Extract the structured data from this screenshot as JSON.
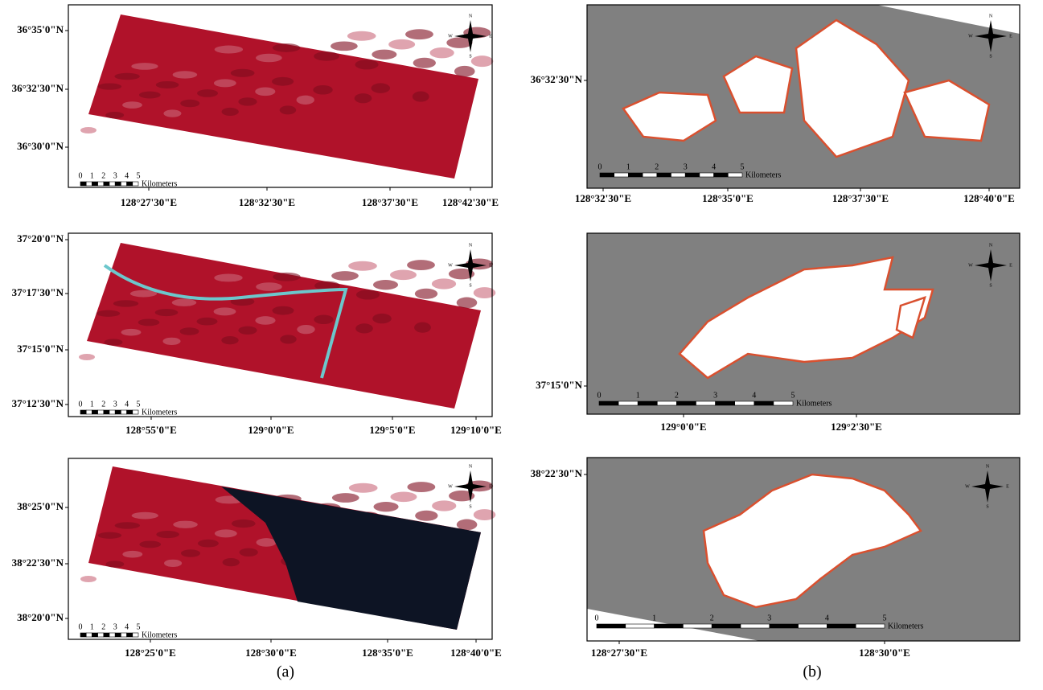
{
  "columns": [
    {
      "caption": "(a)",
      "panels": [
        {
          "lat_labels": [
            "36°35'0\"N",
            "36°32'30\"N",
            "36°30'0\"N"
          ],
          "lon_labels": [
            "128°27'30\"E",
            "128°32'30\"E",
            "128°37'30\"E",
            "128°42'30\"E"
          ],
          "scale_labels": [
            "0",
            "1",
            "2",
            "3",
            "4",
            "5"
          ],
          "scale_unit": "Kilometers",
          "compass": [
            "N",
            "E",
            "S",
            "W"
          ]
        },
        {
          "lat_labels": [
            "37°20'0\"N",
            "37°17'30\"N",
            "37°15'0\"N",
            "37°12'30\"N"
          ],
          "lon_labels": [
            "128°55'0\"E",
            "129°0'0\"E",
            "129°5'0\"E",
            "129°10'0\"E"
          ],
          "scale_labels": [
            "0",
            "1",
            "2",
            "3",
            "4",
            "5"
          ],
          "scale_unit": "Kilometers",
          "compass": [
            "N",
            "E",
            "S",
            "W"
          ]
        },
        {
          "lat_labels": [
            "38°25'0\"N",
            "38°22'30\"N",
            "38°20'0\"N"
          ],
          "lon_labels": [
            "128°25'0\"E",
            "128°30'0\"E",
            "128°35'0\"E",
            "128°40'0\"E"
          ],
          "scale_labels": [
            "0",
            "1",
            "2",
            "3",
            "4",
            "5"
          ],
          "scale_unit": "Kilometers",
          "compass": [
            "N",
            "E",
            "S",
            "W"
          ]
        }
      ]
    },
    {
      "caption": "(b)",
      "panels": [
        {
          "lat_labels": [
            "36°32'30\"N"
          ],
          "lon_labels": [
            "128°32'30\"E",
            "128°35'0\"E",
            "128°37'30\"E",
            "128°40'0\"E"
          ],
          "scale_labels": [
            "0",
            "1",
            "2",
            "3",
            "4",
            "5"
          ],
          "scale_unit": "Kilometers",
          "compass": [
            "N",
            "E",
            "S",
            "W"
          ]
        },
        {
          "lat_labels": [
            "37°15'0\"N"
          ],
          "lon_labels": [
            "129°0'0\"E",
            "129°2'30\"E"
          ],
          "scale_labels": [
            "0",
            "1",
            "2",
            "3",
            "4",
            "5"
          ],
          "scale_unit": "Kilometers",
          "compass": [
            "N",
            "E",
            "S",
            "W"
          ]
        },
        {
          "lat_labels": [
            "38°22'30\"N"
          ],
          "lon_labels": [
            "128°27'30\"E",
            "128°30'0\"E"
          ],
          "scale_labels": [
            "0",
            "1",
            "2",
            "3",
            "4",
            "5"
          ],
          "scale_unit": "Kilometers",
          "compass": [
            "N",
            "E",
            "S",
            "W"
          ]
        }
      ]
    }
  ]
}
